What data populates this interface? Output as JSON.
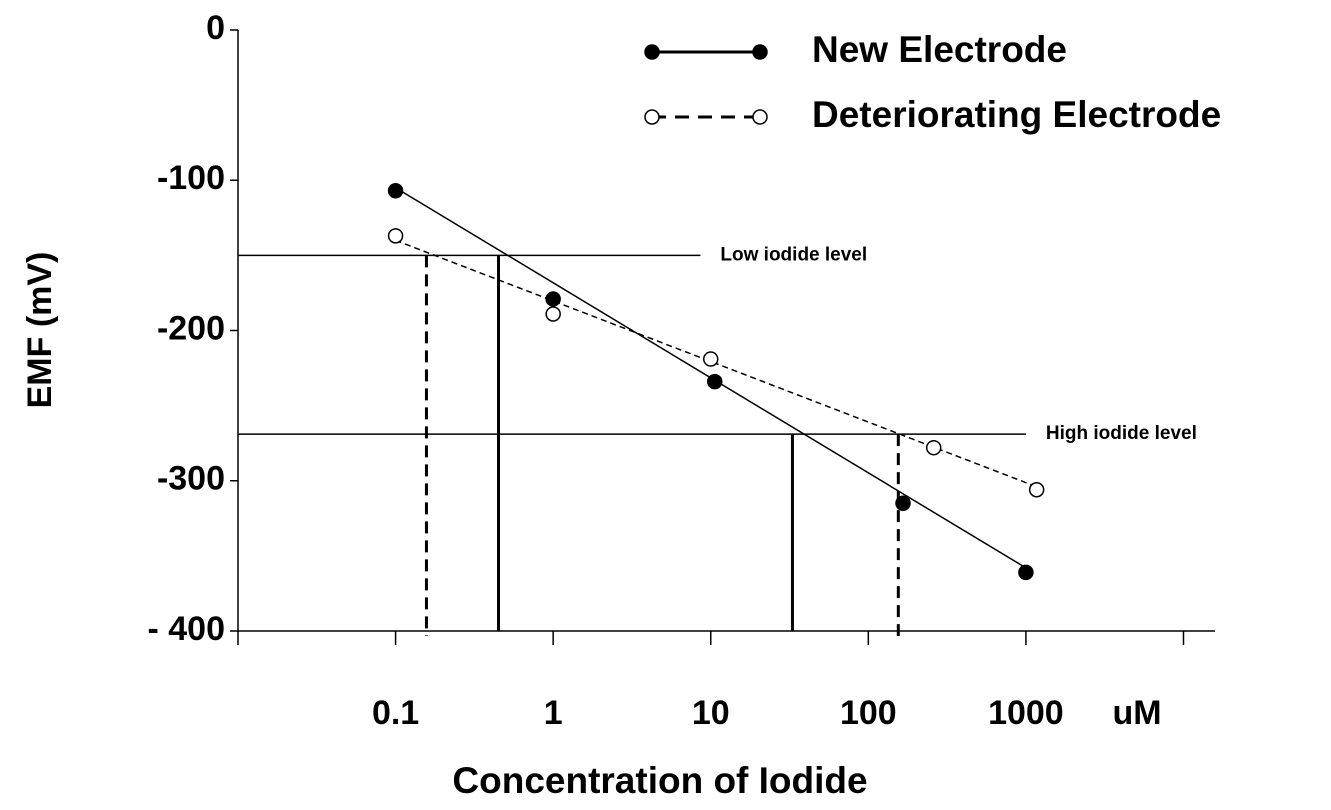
{
  "chart_data": {
    "type": "scatter",
    "x_label": "Concentration of Iodide",
    "x_unit": "uM",
    "y_label": "EMF (mV)",
    "xscale": "log",
    "xlim": [
      0.01,
      15849
    ],
    "xticks": [
      0.1,
      1,
      10,
      100,
      1000
    ],
    "xticks_unlabeled": [
      0.01,
      10000
    ],
    "ylim": [
      -400,
      0
    ],
    "yticks": [
      0,
      -100,
      -200,
      -300,
      {
        "value": -400,
        "label": "- 400"
      }
    ],
    "legend": "top-right",
    "series": [
      {
        "name": "New Electrode",
        "color": "#000000",
        "marker": "filled",
        "line_style": "solid",
        "x": [
          0.1,
          1,
          10.6,
          166,
          1000
        ],
        "values": [
          -107,
          -179,
          -234,
          -315,
          -361
        ],
        "fit_x": [
          0.1,
          1000
        ],
        "fit_values": [
          -105,
          -358
        ]
      },
      {
        "name": "Deteriorating Electrode",
        "color": "#000000",
        "marker": "open",
        "line_style": "dashed",
        "x": [
          0.1,
          1,
          10,
          260,
          1170
        ],
        "values": [
          -137,
          -189,
          -219,
          -278,
          -306
        ],
        "fit_x": [
          0.1,
          1170
        ],
        "fit_values": [
          -140,
          -304
        ]
      }
    ],
    "reference_levels": [
      {
        "label": "Low iodide level",
        "value": -150,
        "x_end": 8.6,
        "drops": [
          {
            "x": 0.45,
            "style": "solid"
          },
          {
            "x": 0.157,
            "style": "dashed"
          }
        ]
      },
      {
        "label": "High iodide level",
        "value": -269,
        "x_end": 1000,
        "drops": [
          {
            "x": 33,
            "style": "solid"
          },
          {
            "x": 155,
            "style": "dashed"
          }
        ]
      }
    ]
  }
}
